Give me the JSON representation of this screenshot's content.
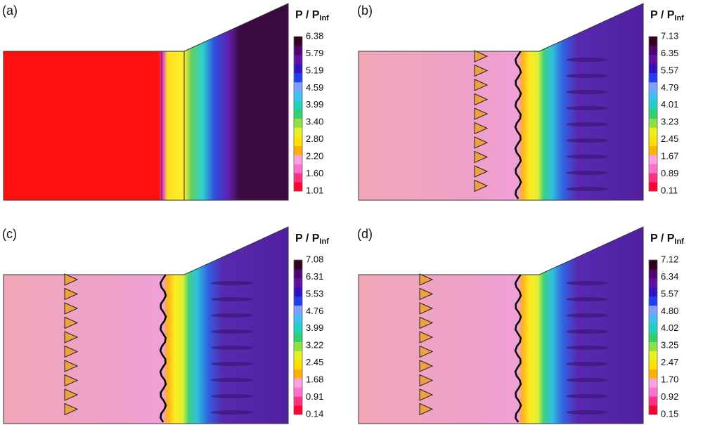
{
  "panels": [
    {
      "label": "(a)",
      "legend": {
        "title": "P / P",
        "subscript": "Inf",
        "ticks": [
          "6.38",
          "5.79",
          "5.19",
          "4.59",
          "3.99",
          "3.40",
          "2.80",
          "2.20",
          "1.60",
          "1.01"
        ]
      }
    },
    {
      "label": "(b)",
      "legend": {
        "title": "P / P",
        "subscript": "Inf",
        "ticks": [
          "7.13",
          "6.35",
          "5.57",
          "4.79",
          "4.01",
          "3.23",
          "2.45",
          "1.67",
          "0.89",
          "0.11"
        ]
      }
    },
    {
      "label": "(c)",
      "legend": {
        "title": "P / P",
        "subscript": "Inf",
        "ticks": [
          "7.08",
          "6.31",
          "5.53",
          "4.76",
          "3.99",
          "3.22",
          "2.45",
          "1.68",
          "0.91",
          "0.14"
        ]
      }
    },
    {
      "label": "(d)",
      "legend": {
        "title": "P / P",
        "subscript": "Inf",
        "ticks": [
          "7.12",
          "6.34",
          "5.57",
          "4.80",
          "4.02",
          "3.25",
          "2.47",
          "1.70",
          "0.92",
          "0.15"
        ]
      }
    }
  ]
}
